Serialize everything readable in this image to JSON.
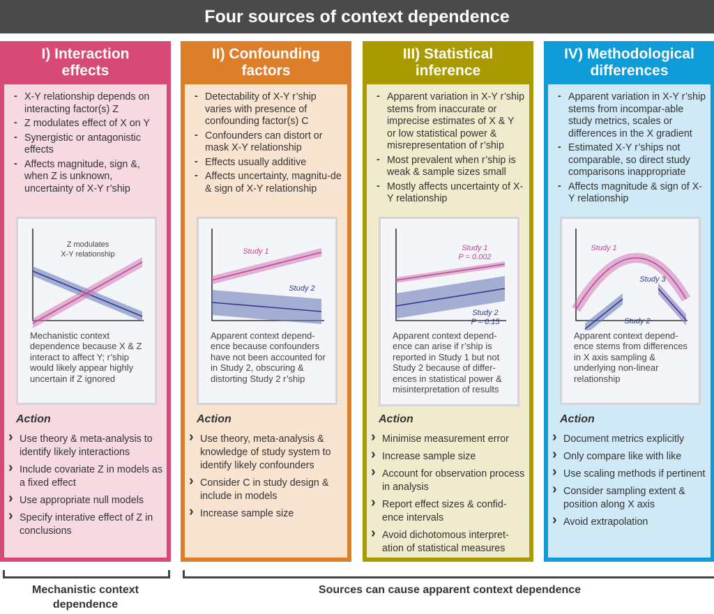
{
  "title": "Four sources of context dependence",
  "colors": {
    "interaction": "#d64a75",
    "confounding": "#dd7e2a",
    "statistical": "#a89a00",
    "methodological": "#0f9ad8"
  },
  "columns": [
    {
      "header": [
        "I) Interaction",
        "effects"
      ],
      "points": [
        "X-Y relationship depends on interacting factor(s) Z",
        "Z modulates effect of X on Y",
        "Synergistic or antagonistic effects",
        "Affects magnitude, sign &, when Z is unknown, uncertainty of X-Y r’ship"
      ],
      "chart_labels": [
        "Z modulates",
        "X-Y relationship"
      ],
      "caption": "Mechanistic context dependence because X & Z interact to affect Y; r’ship would likely appear highly uncertain if Z ignored",
      "action_title": "Action",
      "actions": [
        "Use theory & meta-analysis to identify likely interactions",
        "Include covariate Z in models as a fixed effect",
        "Use appropriate null models",
        "Specify interative effect of Z in conclusions"
      ]
    },
    {
      "header": [
        "II) Confounding",
        "factors"
      ],
      "points": [
        "Detectability of X-Y r’ship varies with presence of confounding factor(s) C",
        "Confounders can distort or mask X-Y relationship",
        "Effects usually additive",
        "Affects uncertainty, magnitu-de & sign of X-Y relationship"
      ],
      "chart_labels": [
        "Study 1",
        "Study 2"
      ],
      "caption": "Apparent context depend-ence because confounders have not been accounted for in Study 2, obscuring & distorting Study 2 r’ship",
      "action_title": "Action",
      "actions": [
        "Use theory, meta-analysis & knowledge of study system to identify likely confounders",
        "Consider C in study design & include in models",
        "Increase sample size"
      ]
    },
    {
      "header": [
        "III) Statistical",
        "inference"
      ],
      "points": [
        "Apparent variation in X-Y r’ship stems from inaccurate or imprecise estimates of X & Y or low statistical power & misrepresentation of r’ship",
        "Most prevalent when r’ship is weak & sample sizes small",
        "Mostly affects uncertainty of X-Y relationship"
      ],
      "chart_labels": [
        "Study 1",
        "P = 0.002",
        "Study 2",
        "P = 0.15"
      ],
      "caption": "Apparent context depend-ence can arise if r’ship is reported in Study 1 but not Study 2 because of differ-ences in statistical power & misinterpretation of results",
      "action_title": "Action",
      "actions": [
        "Minimise measurement error",
        "Increase sample size",
        "Account for observation process in analysis",
        "Report effect sizes & confid-ence intervals",
        "Avoid dichotomous interpret-ation of statistical measures"
      ]
    },
    {
      "header": [
        "IV) Methodological",
        "differences"
      ],
      "points": [
        "Apparent variation in X-Y r’ship stems from incompar-able study metrics, scales or differences in the X gradient",
        "Estimated X-Y r’ships not comparable, so direct study comparisons inappropriate",
        "Affects magnitude & sign of X-Y relationship"
      ],
      "chart_labels": [
        "Study 1",
        "Study 3",
        "Study 2"
      ],
      "caption": "Apparent context depend-ence stems from differences in X axis sampling & underlying non-linear relationship",
      "action_title": "Action",
      "actions": [
        "Document metrics explicitly",
        "Only compare like with like",
        "Use scaling methods if pertinent",
        "Consider sampling extent & position along X axis",
        "Avoid extrapolation"
      ]
    }
  ],
  "footer": {
    "left": "Mechanistic context dependence",
    "right": "Sources can cause apparent context dependence"
  }
}
